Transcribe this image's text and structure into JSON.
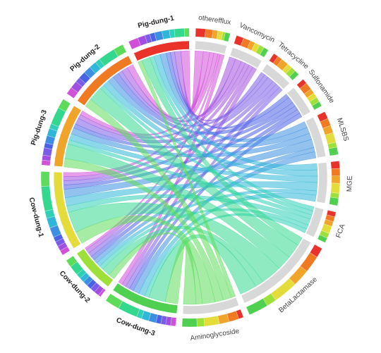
{
  "chart_data": {
    "type": "chord",
    "sources": [
      {
        "name": "Pig-dung-1",
        "color": "#e8322a"
      },
      {
        "name": "Pig-dung-2",
        "color": "#f07a22"
      },
      {
        "name": "Pig-dung-3",
        "color": "#f0a42a"
      },
      {
        "name": "Cow-dung-1",
        "color": "#e4dc3a"
      },
      {
        "name": "Cow-dung-2",
        "color": "#9ee03a"
      },
      {
        "name": "Cow-dung-3",
        "color": "#50d050"
      }
    ],
    "targets": [
      {
        "name": "otherefflux",
        "color": "#d24fd8"
      },
      {
        "name": "Vancomycin",
        "color": "#a04fe0"
      },
      {
        "name": "Tetracycline",
        "color": "#7a5ce8"
      },
      {
        "name": "Sulfonamide",
        "color": "#4a63e6"
      },
      {
        "name": "MLSBS",
        "color": "#3c8fe0"
      },
      {
        "name": "MGE",
        "color": "#30b6d8"
      },
      {
        "name": "FCA",
        "color": "#2fcfb8"
      },
      {
        "name": "BetaLactamase",
        "color": "#33d88e"
      },
      {
        "name": "Aminoglycoside",
        "color": "#5cdc5a"
      }
    ],
    "matrix": [
      [
        4,
        3,
        2,
        2,
        3,
        3,
        2,
        4,
        2
      ],
      [
        3,
        3,
        2,
        3,
        3,
        3,
        2,
        7,
        4
      ],
      [
        2,
        2,
        3,
        2,
        3,
        3,
        2,
        7,
        4
      ],
      [
        2,
        2,
        2,
        2,
        4,
        4,
        3,
        10,
        6
      ],
      [
        1,
        2,
        2,
        2,
        2,
        2,
        2,
        4,
        3
      ],
      [
        2,
        2,
        2,
        2,
        3,
        3,
        2,
        8,
        6
      ]
    ]
  }
}
